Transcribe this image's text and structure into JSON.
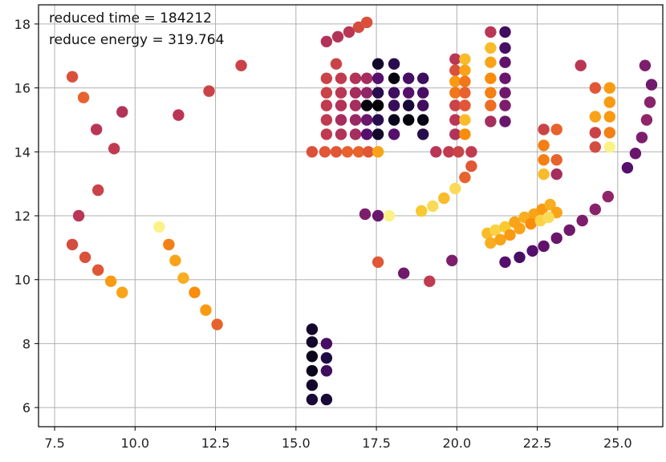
{
  "chart_data": {
    "type": "scatter",
    "title": "",
    "xlabel": "",
    "ylabel": "",
    "xlim": [
      7.0,
      26.4
    ],
    "ylim": [
      5.4,
      18.6
    ],
    "xticks": [
      7.5,
      10.0,
      12.5,
      15.0,
      17.5,
      20.0,
      22.5,
      25.0
    ],
    "xtick_labels": [
      "7.5",
      "10.0",
      "12.5",
      "15.0",
      "17.5",
      "20.0",
      "22.5",
      "25.0"
    ],
    "yticks": [
      6,
      8,
      10,
      12,
      14,
      16,
      18
    ],
    "ytick_labels": [
      "6",
      "8",
      "10",
      "12",
      "14",
      "16",
      "18"
    ],
    "grid": true,
    "colormap": "inferno",
    "annotations": [
      "reduced time = 184212",
      "reduce energy = 319.764"
    ],
    "points": [
      [
        8.05,
        16.35,
        0.6
      ],
      [
        8.4,
        15.7,
        0.65
      ],
      [
        8.8,
        14.7,
        0.5
      ],
      [
        9.6,
        15.25,
        0.48
      ],
      [
        9.35,
        14.1,
        0.52
      ],
      [
        8.85,
        12.8,
        0.55
      ],
      [
        8.25,
        12.0,
        0.5
      ],
      [
        8.05,
        11.1,
        0.58
      ],
      [
        8.45,
        10.7,
        0.6
      ],
      [
        8.85,
        10.3,
        0.62
      ],
      [
        9.25,
        9.95,
        0.78
      ],
      [
        9.6,
        9.6,
        0.8
      ],
      [
        10.75,
        11.65,
        0.97
      ],
      [
        11.05,
        11.1,
        0.72
      ],
      [
        11.25,
        10.6,
        0.8
      ],
      [
        11.5,
        10.05,
        0.82
      ],
      [
        11.85,
        9.6,
        0.75
      ],
      [
        12.2,
        9.05,
        0.78
      ],
      [
        12.55,
        8.6,
        0.65
      ],
      [
        11.35,
        15.15,
        0.5
      ],
      [
        12.3,
        15.9,
        0.55
      ],
      [
        13.3,
        16.7,
        0.55
      ],
      [
        15.95,
        17.45,
        0.48
      ],
      [
        16.3,
        17.6,
        0.48
      ],
      [
        16.65,
        17.75,
        0.5
      ],
      [
        16.95,
        17.9,
        0.58
      ],
      [
        17.2,
        18.05,
        0.6
      ],
      [
        15.5,
        8.45,
        0.08
      ],
      [
        15.5,
        8.05,
        0.08
      ],
      [
        15.5,
        7.6,
        0.05
      ],
      [
        15.5,
        7.15,
        0.05
      ],
      [
        15.5,
        6.7,
        0.08
      ],
      [
        15.5,
        6.25,
        0.1
      ],
      [
        15.95,
        8.0,
        0.22
      ],
      [
        15.95,
        7.55,
        0.12
      ],
      [
        15.95,
        7.15,
        0.2
      ],
      [
        15.95,
        6.25,
        0.1
      ],
      [
        16.25,
        16.75,
        0.55
      ],
      [
        15.95,
        16.3,
        0.55
      ],
      [
        16.4,
        16.3,
        0.52
      ],
      [
        16.85,
        16.3,
        0.48
      ],
      [
        17.2,
        16.3,
        0.45
      ],
      [
        17.55,
        16.75,
        0.08
      ],
      [
        17.55,
        16.3,
        0.25
      ],
      [
        18.05,
        16.75,
        0.15
      ],
      [
        18.05,
        16.3,
        0.02
      ],
      [
        18.5,
        16.3,
        0.22
      ],
      [
        18.95,
        16.3,
        0.2
      ],
      [
        15.95,
        15.85,
        0.55
      ],
      [
        16.4,
        15.85,
        0.5
      ],
      [
        16.85,
        15.85,
        0.45
      ],
      [
        17.2,
        15.85,
        0.4
      ],
      [
        17.55,
        15.85,
        0.15
      ],
      [
        17.55,
        15.45,
        0.0
      ],
      [
        18.05,
        15.85,
        0.2
      ],
      [
        18.5,
        15.85,
        0.25
      ],
      [
        18.95,
        15.85,
        0.22
      ],
      [
        15.95,
        15.45,
        0.52
      ],
      [
        16.4,
        15.45,
        0.48
      ],
      [
        16.85,
        15.45,
        0.45
      ],
      [
        17.2,
        15.45,
        0.02
      ],
      [
        17.55,
        15.0,
        0.15
      ],
      [
        18.05,
        15.45,
        0.18
      ],
      [
        18.5,
        15.45,
        0.1
      ],
      [
        18.95,
        15.45,
        0.2
      ],
      [
        15.95,
        15.0,
        0.52
      ],
      [
        16.4,
        15.0,
        0.45
      ],
      [
        16.85,
        15.0,
        0.42
      ],
      [
        17.2,
        15.0,
        0.3
      ],
      [
        18.05,
        15.0,
        0.05
      ],
      [
        18.5,
        15.0,
        0.02
      ],
      [
        18.95,
        15.0,
        0.03
      ],
      [
        15.95,
        14.55,
        0.52
      ],
      [
        16.4,
        14.55,
        0.48
      ],
      [
        16.85,
        14.55,
        0.45
      ],
      [
        17.2,
        14.55,
        0.25
      ],
      [
        17.55,
        14.55,
        0.08
      ],
      [
        18.05,
        14.55,
        0.25
      ],
      [
        18.95,
        14.55,
        0.15
      ],
      [
        15.5,
        14.0,
        0.6
      ],
      [
        15.9,
        14.0,
        0.62
      ],
      [
        16.25,
        14.0,
        0.62
      ],
      [
        16.6,
        14.0,
        0.65
      ],
      [
        16.95,
        14.0,
        0.65
      ],
      [
        17.25,
        14.0,
        0.62
      ],
      [
        17.55,
        14.0,
        0.8
      ],
      [
        19.35,
        14.0,
        0.5
      ],
      [
        19.75,
        14.0,
        0.52
      ],
      [
        20.05,
        14.0,
        0.55
      ],
      [
        20.45,
        14.0,
        0.52
      ],
      [
        19.95,
        16.9,
        0.5
      ],
      [
        19.95,
        16.55,
        0.6
      ],
      [
        19.95,
        16.2,
        0.78
      ],
      [
        19.95,
        15.85,
        0.7
      ],
      [
        19.95,
        15.45,
        0.55
      ],
      [
        19.95,
        15.0,
        0.5
      ],
      [
        19.95,
        14.55,
        0.48
      ],
      [
        20.25,
        16.9,
        0.85
      ],
      [
        20.25,
        16.55,
        0.8
      ],
      [
        20.25,
        16.2,
        0.7
      ],
      [
        20.25,
        15.85,
        0.65
      ],
      [
        20.25,
        15.45,
        0.62
      ],
      [
        20.25,
        15.0,
        0.85
      ],
      [
        20.25,
        14.55,
        0.75
      ],
      [
        21.05,
        17.75,
        0.5
      ],
      [
        21.05,
        17.25,
        0.85
      ],
      [
        21.05,
        16.8,
        0.8
      ],
      [
        21.05,
        16.3,
        0.75
      ],
      [
        21.05,
        15.85,
        0.72
      ],
      [
        21.05,
        15.45,
        0.68
      ],
      [
        21.05,
        14.95,
        0.45
      ],
      [
        21.5,
        17.75,
        0.2
      ],
      [
        21.5,
        17.25,
        0.22
      ],
      [
        21.5,
        16.8,
        0.28
      ],
      [
        21.5,
        16.3,
        0.3
      ],
      [
        21.5,
        15.85,
        0.32
      ],
      [
        21.5,
        15.45,
        0.35
      ],
      [
        21.5,
        14.95,
        0.3
      ],
      [
        17.15,
        12.05,
        0.35
      ],
      [
        17.55,
        12.0,
        0.3
      ],
      [
        17.9,
        12.0,
        0.97
      ],
      [
        18.9,
        12.15,
        0.88
      ],
      [
        19.25,
        12.3,
        0.92
      ],
      [
        19.6,
        12.55,
        0.85
      ],
      [
        19.95,
        12.85,
        0.92
      ],
      [
        20.25,
        13.2,
        0.65
      ],
      [
        20.45,
        13.55,
        0.62
      ],
      [
        17.55,
        10.55,
        0.62
      ],
      [
        18.35,
        10.2,
        0.32
      ],
      [
        19.15,
        9.95,
        0.52
      ],
      [
        19.85,
        10.6,
        0.35
      ],
      [
        20.95,
        11.45,
        0.85
      ],
      [
        21.2,
        11.55,
        0.9
      ],
      [
        21.5,
        11.65,
        0.88
      ],
      [
        21.8,
        11.8,
        0.8
      ],
      [
        22.1,
        11.95,
        0.82
      ],
      [
        22.4,
        12.05,
        0.8
      ],
      [
        22.65,
        12.2,
        0.78
      ],
      [
        22.9,
        12.35,
        0.82
      ],
      [
        23.1,
        12.1,
        0.8
      ],
      [
        21.05,
        11.15,
        0.82
      ],
      [
        21.35,
        11.25,
        0.8
      ],
      [
        21.65,
        11.4,
        0.78
      ],
      [
        21.95,
        11.6,
        0.8
      ],
      [
        22.3,
        11.75,
        0.75
      ],
      [
        22.6,
        11.85,
        0.9
      ],
      [
        22.85,
        11.95,
        0.92
      ],
      [
        21.5,
        10.55,
        0.25
      ],
      [
        21.95,
        10.7,
        0.22
      ],
      [
        22.35,
        10.9,
        0.25
      ],
      [
        22.7,
        11.05,
        0.28
      ],
      [
        23.1,
        11.3,
        0.3
      ],
      [
        23.5,
        11.55,
        0.32
      ],
      [
        23.9,
        11.85,
        0.35
      ],
      [
        24.3,
        12.2,
        0.38
      ],
      [
        24.7,
        12.6,
        0.4
      ],
      [
        22.7,
        14.7,
        0.55
      ],
      [
        22.7,
        14.2,
        0.72
      ],
      [
        22.7,
        13.75,
        0.72
      ],
      [
        22.7,
        13.3,
        0.85
      ],
      [
        23.1,
        14.7,
        0.65
      ],
      [
        23.1,
        13.75,
        0.65
      ],
      [
        23.1,
        13.3,
        0.45
      ],
      [
        23.85,
        16.7,
        0.5
      ],
      [
        24.3,
        16.0,
        0.62
      ],
      [
        24.3,
        15.1,
        0.8
      ],
      [
        24.3,
        14.6,
        0.55
      ],
      [
        24.3,
        14.15,
        0.58
      ],
      [
        24.75,
        16.0,
        0.78
      ],
      [
        24.75,
        15.55,
        0.78
      ],
      [
        24.75,
        15.1,
        0.78
      ],
      [
        24.75,
        14.6,
        0.72
      ],
      [
        24.75,
        14.15,
        0.97
      ],
      [
        25.3,
        13.5,
        0.25
      ],
      [
        25.55,
        13.95,
        0.3
      ],
      [
        25.75,
        14.45,
        0.35
      ],
      [
        25.9,
        15.0,
        0.4
      ],
      [
        26.0,
        15.55,
        0.38
      ],
      [
        26.05,
        16.1,
        0.32
      ],
      [
        25.85,
        16.7,
        0.35
      ]
    ]
  }
}
